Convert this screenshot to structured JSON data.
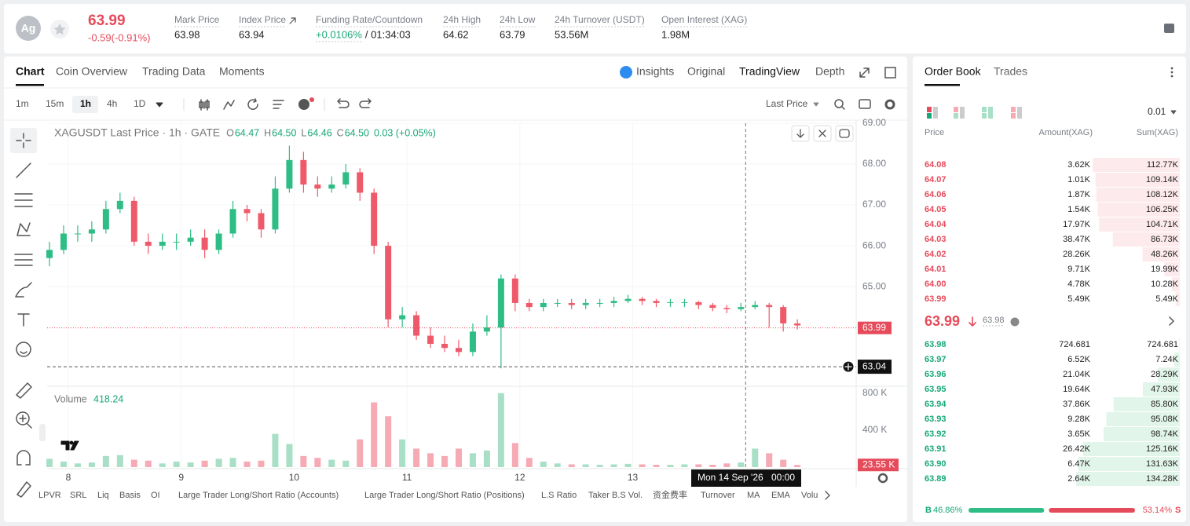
{
  "header": {
    "symbol_icon": "Ag",
    "price": "63.99",
    "change": "-0.59(-0.91%)",
    "stats": [
      {
        "label": "Mark Price",
        "value": "63.98"
      },
      {
        "label": "Index Price",
        "value": "63.94"
      },
      {
        "label": "Funding Rate/Countdown",
        "value": "+0.0106%",
        "extra": "/ 01:34:03"
      },
      {
        "label": "24h High",
        "value": "64.62"
      },
      {
        "label": "24h Low",
        "value": "63.79"
      },
      {
        "label": "24h Turnover (USDT)",
        "value": "53.56M"
      },
      {
        "label": "Open Interest (XAG)",
        "value": "1.98M"
      }
    ]
  },
  "tabs": [
    "Chart",
    "Coin Overview",
    "Trading Data",
    "Moments"
  ],
  "view_tabs": [
    "Insights",
    "Original",
    "TradingView",
    "Depth"
  ],
  "intervals": [
    "1m",
    "15m",
    "1h",
    "4h",
    "1D"
  ],
  "price_type": "Last Price",
  "legend": {
    "title": "XAGUSDT Last Price · 1h · GATE",
    "o": "O",
    "o_value": "64.47",
    "h": "H",
    "h_value": "64.50",
    "l": "L",
    "l_value": "64.46",
    "c": "C",
    "c_value": "64.50",
    "change": "0.03 (+0.05%)"
  },
  "indicators": [
    "LPVR",
    "SRL",
    "Liq",
    "Basis",
    "OI",
    "Large Trader Long/Short Ratio (Accounts)",
    "Large Trader Long/Short Ratio (Positions)",
    "L.S Ratio",
    "Taker B.S Vol.",
    "资金费率",
    "Turnover",
    "MA",
    "EMA",
    "Volu"
  ],
  "chart_data": [
    {
      "type": "candlestick",
      "color_up": "#2ebd85",
      "color_down": "#ef5a6a",
      "x": [
        0,
        3,
        6,
        9,
        12,
        15,
        18,
        21,
        24,
        27,
        30,
        33,
        36,
        39,
        42,
        45,
        48,
        51,
        54,
        57,
        60,
        63,
        66,
        69,
        72,
        75,
        78,
        81,
        84,
        87,
        90,
        93,
        96,
        99,
        102,
        105,
        108,
        111,
        114,
        117,
        120,
        123,
        126,
        129,
        132,
        135,
        138,
        141,
        144,
        147,
        150,
        153,
        156,
        159
      ],
      "open": [
        65.7,
        65.9,
        66.3,
        66.3,
        66.4,
        66.9,
        67.1,
        66.1,
        66.0,
        66.1,
        66.1,
        66.2,
        65.9,
        66.3,
        66.9,
        66.8,
        66.4,
        67.4,
        68.1,
        67.5,
        67.4,
        67.5,
        67.8,
        67.3,
        66.0,
        64.2,
        64.3,
        63.8,
        63.6,
        63.5,
        63.4,
        63.9,
        64.0,
        65.2,
        64.6,
        64.5,
        64.6,
        64.6,
        64.55,
        64.6,
        64.6,
        64.65,
        64.7,
        64.65,
        64.6,
        64.62,
        64.62,
        64.55,
        64.48,
        64.45,
        64.5,
        64.55,
        64.5,
        64.1
      ],
      "high": [
        66.1,
        66.5,
        66.5,
        66.6,
        67.1,
        67.3,
        67.2,
        66.3,
        66.3,
        66.3,
        66.4,
        66.4,
        66.4,
        67.1,
        67.0,
        66.9,
        67.7,
        68.45,
        68.3,
        67.7,
        67.7,
        68.0,
        67.9,
        67.4,
        66.1,
        64.5,
        64.4,
        64.0,
        63.8,
        63.7,
        64.1,
        64.3,
        65.3,
        65.3,
        64.7,
        64.7,
        64.7,
        64.7,
        64.7,
        64.7,
        64.75,
        64.8,
        64.75,
        64.7,
        64.7,
        64.7,
        64.65,
        64.6,
        64.55,
        64.6,
        64.65,
        64.6,
        64.55,
        64.2
      ],
      "low": [
        65.5,
        65.8,
        66.1,
        66.1,
        66.3,
        66.8,
        66.0,
        65.8,
        65.9,
        65.9,
        66.0,
        65.7,
        65.8,
        66.2,
        66.6,
        66.2,
        66.3,
        67.3,
        67.3,
        67.2,
        67.3,
        67.4,
        67.1,
        65.8,
        64.0,
        64.0,
        63.7,
        63.5,
        63.4,
        63.3,
        63.3,
        63.8,
        63.0,
        64.4,
        64.4,
        64.4,
        64.5,
        64.45,
        64.45,
        64.5,
        64.5,
        64.6,
        64.55,
        64.5,
        64.5,
        64.5,
        64.45,
        64.4,
        64.35,
        64.4,
        64.45,
        64.0,
        63.9,
        63.95
      ],
      "close": [
        65.9,
        66.3,
        66.3,
        66.4,
        66.9,
        67.1,
        66.1,
        66.0,
        66.1,
        66.1,
        66.2,
        65.9,
        66.3,
        66.9,
        66.8,
        66.4,
        67.4,
        68.1,
        67.5,
        67.4,
        67.5,
        67.8,
        67.3,
        66.0,
        64.2,
        64.3,
        63.8,
        63.6,
        63.5,
        63.4,
        63.9,
        64.0,
        65.2,
        64.6,
        64.5,
        64.6,
        64.6,
        64.55,
        64.6,
        64.6,
        64.65,
        64.7,
        64.65,
        64.6,
        64.62,
        64.62,
        64.55,
        64.48,
        64.45,
        64.5,
        64.55,
        64.5,
        64.1,
        64.05
      ],
      "xlim": [
        -0.5,
        171.5
      ],
      "xticks": [
        {
          "value": 4,
          "label": "8"
        },
        {
          "value": 28,
          "label": "9"
        },
        {
          "value": 52,
          "label": "10"
        },
        {
          "value": 76,
          "label": "11"
        },
        {
          "value": 100,
          "label": "12"
        },
        {
          "value": 124,
          "label": "13"
        }
      ],
      "ylim": [
        62.6,
        69
      ],
      "yticks": [
        {
          "value": 69,
          "label": "69.00"
        },
        {
          "value": 68,
          "label": "68.00"
        },
        {
          "value": 67,
          "label": "67.00"
        },
        {
          "value": 66,
          "label": "66.00"
        },
        {
          "value": 65,
          "label": "65.00"
        }
      ],
      "grid": true,
      "last_price": 63.99,
      "crosshair": {
        "x": 148,
        "date": "Mon 14 Sep '26",
        "time": "00:00",
        "y": 63.04
      }
    },
    {
      "type": "bar",
      "name": "Volume",
      "legend_value": "418.24",
      "color_up": "#a9dfc6",
      "color_down": "#f5aab4",
      "values": [
        90000,
        60000,
        40000,
        50000,
        120000,
        130000,
        80000,
        70000,
        40000,
        60000,
        50000,
        70000,
        90000,
        100000,
        60000,
        70000,
        360000,
        250000,
        120000,
        100000,
        80000,
        70000,
        300000,
        700000,
        550000,
        300000,
        200000,
        150000,
        120000,
        200000,
        150000,
        180000,
        800000,
        260000,
        100000,
        60000,
        40000,
        30000,
        30000,
        25000,
        30000,
        35000,
        30000,
        25000,
        25000,
        30000,
        30000,
        25000,
        40000,
        50000,
        200000,
        150000,
        80000,
        23550
      ],
      "ylim": [
        0,
        900000
      ],
      "yticks": [
        {
          "value": 400000,
          "label": "400 K"
        },
        {
          "value": 800000,
          "label": "800 K"
        }
      ],
      "last_value": 23550,
      "last_label": "23.55 K"
    }
  ],
  "order_book": {
    "tabs": [
      "Order Book",
      "Trades"
    ],
    "precision": "0.01",
    "headers": [
      "Price",
      "Amount(XAG)",
      "Sum(XAG)"
    ],
    "asks": {
      "prices": [
        "64.08",
        "64.07",
        "64.06",
        "64.05",
        "64.04",
        "64.03",
        "64.02",
        "64.01",
        "64.00",
        "63.99"
      ],
      "amounts": [
        "3.62K",
        "1.01K",
        "1.87K",
        "1.54K",
        "17.97K",
        "38.47K",
        "28.26K",
        "9.71K",
        "4.78K",
        "5.49K"
      ],
      "values": [
        112770,
        109140,
        108120,
        106250,
        104710,
        86730,
        48260,
        19990,
        10280,
        5490
      ],
      "value_labels": [
        "112.77K",
        "109.14K",
        "108.12K",
        "106.25K",
        "104.71K",
        "86.73K",
        "48.26K",
        "19.99K",
        "10.28K",
        "5.49K"
      ]
    },
    "mid_price": "63.99",
    "mark_price": "63.98",
    "bids": {
      "prices": [
        "63.98",
        "63.97",
        "63.96",
        "63.95",
        "63.94",
        "63.93",
        "63.92",
        "63.91",
        "63.90",
        "63.89"
      ],
      "amounts": [
        "724.681",
        "6.52K",
        "21.04K",
        "19.64K",
        "37.86K",
        "9.28K",
        "3.65K",
        "26.42K",
        "6.47K",
        "2.64K"
      ],
      "values": [
        724.681,
        7240,
        28290,
        47930,
        85800,
        95080,
        98740,
        125160,
        131630,
        134280
      ],
      "value_labels": [
        "724.681",
        "7.24K",
        "28.29K",
        "47.93K",
        "85.80K",
        "95.08K",
        "98.74K",
        "125.16K",
        "131.63K",
        "134.28K"
      ]
    },
    "balance": {
      "labels": [
        "B",
        "S"
      ],
      "values": [
        46.86,
        53.14
      ],
      "value_labels": [
        "46.86%",
        "53.14%"
      ]
    }
  }
}
